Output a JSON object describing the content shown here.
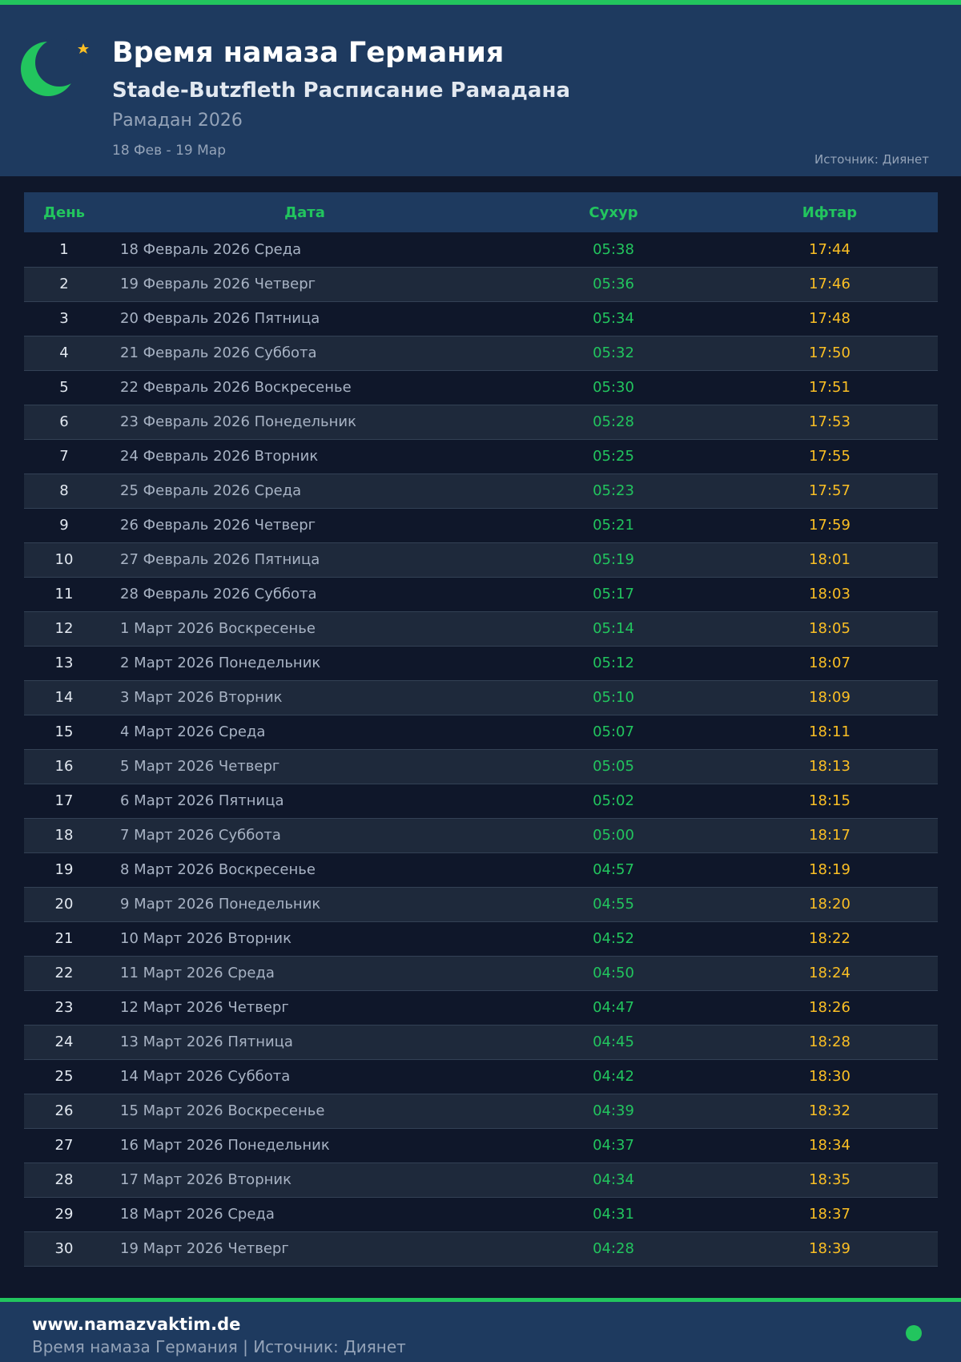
{
  "header": {
    "title": "Время намаза Германия",
    "subtitle": "Stade-Butzfleth Расписание Рамадана",
    "year": "Рамадан 2026",
    "range": "18 Фев - 19 Мар",
    "source": "Источник: Диянет",
    "logo_icon": "crescent-star-icon"
  },
  "colors": {
    "accent": "#22c55e",
    "iftar": "#fbbf24",
    "header_bg": "#1e3a5f",
    "page_bg": "#0f172a"
  },
  "table": {
    "headers": [
      "День",
      "Дата",
      "Сухур",
      "Ифтар"
    ],
    "rows": [
      [
        "1",
        "18 Февраль 2026 Среда",
        "05:38",
        "17:44"
      ],
      [
        "2",
        "19 Февраль 2026 Четверг",
        "05:36",
        "17:46"
      ],
      [
        "3",
        "20 Февраль 2026 Пятница",
        "05:34",
        "17:48"
      ],
      [
        "4",
        "21 Февраль 2026 Суббота",
        "05:32",
        "17:50"
      ],
      [
        "5",
        "22 Февраль 2026 Воскресенье",
        "05:30",
        "17:51"
      ],
      [
        "6",
        "23 Февраль 2026 Понедельник",
        "05:28",
        "17:53"
      ],
      [
        "7",
        "24 Февраль 2026 Вторник",
        "05:25",
        "17:55"
      ],
      [
        "8",
        "25 Февраль 2026 Среда",
        "05:23",
        "17:57"
      ],
      [
        "9",
        "26 Февраль 2026 Четверг",
        "05:21",
        "17:59"
      ],
      [
        "10",
        "27 Февраль 2026 Пятница",
        "05:19",
        "18:01"
      ],
      [
        "11",
        "28 Февраль 2026 Суббота",
        "05:17",
        "18:03"
      ],
      [
        "12",
        "1 Март 2026 Воскресенье",
        "05:14",
        "18:05"
      ],
      [
        "13",
        "2 Март 2026 Понедельник",
        "05:12",
        "18:07"
      ],
      [
        "14",
        "3 Март 2026 Вторник",
        "05:10",
        "18:09"
      ],
      [
        "15",
        "4 Март 2026 Среда",
        "05:07",
        "18:11"
      ],
      [
        "16",
        "5 Март 2026 Четверг",
        "05:05",
        "18:13"
      ],
      [
        "17",
        "6 Март 2026 Пятница",
        "05:02",
        "18:15"
      ],
      [
        "18",
        "7 Март 2026 Суббота",
        "05:00",
        "18:17"
      ],
      [
        "19",
        "8 Март 2026 Воскресенье",
        "04:57",
        "18:19"
      ],
      [
        "20",
        "9 Март 2026 Понедельник",
        "04:55",
        "18:20"
      ],
      [
        "21",
        "10 Март 2026 Вторник",
        "04:52",
        "18:22"
      ],
      [
        "22",
        "11 Март 2026 Среда",
        "04:50",
        "18:24"
      ],
      [
        "23",
        "12 Март 2026 Четверг",
        "04:47",
        "18:26"
      ],
      [
        "24",
        "13 Март 2026 Пятница",
        "04:45",
        "18:28"
      ],
      [
        "25",
        "14 Март 2026 Суббота",
        "04:42",
        "18:30"
      ],
      [
        "26",
        "15 Март 2026 Воскресенье",
        "04:39",
        "18:32"
      ],
      [
        "27",
        "16 Март 2026 Понедельник",
        "04:37",
        "18:34"
      ],
      [
        "28",
        "17 Март 2026 Вторник",
        "04:34",
        "18:35"
      ],
      [
        "29",
        "18 Март 2026 Среда",
        "04:31",
        "18:37"
      ],
      [
        "30",
        "19 Март 2026 Четверг",
        "04:28",
        "18:39"
      ]
    ]
  },
  "footer": {
    "site": "www.namazvaktim.de",
    "text": "Время намаза Германия | Источник: Диянет"
  }
}
